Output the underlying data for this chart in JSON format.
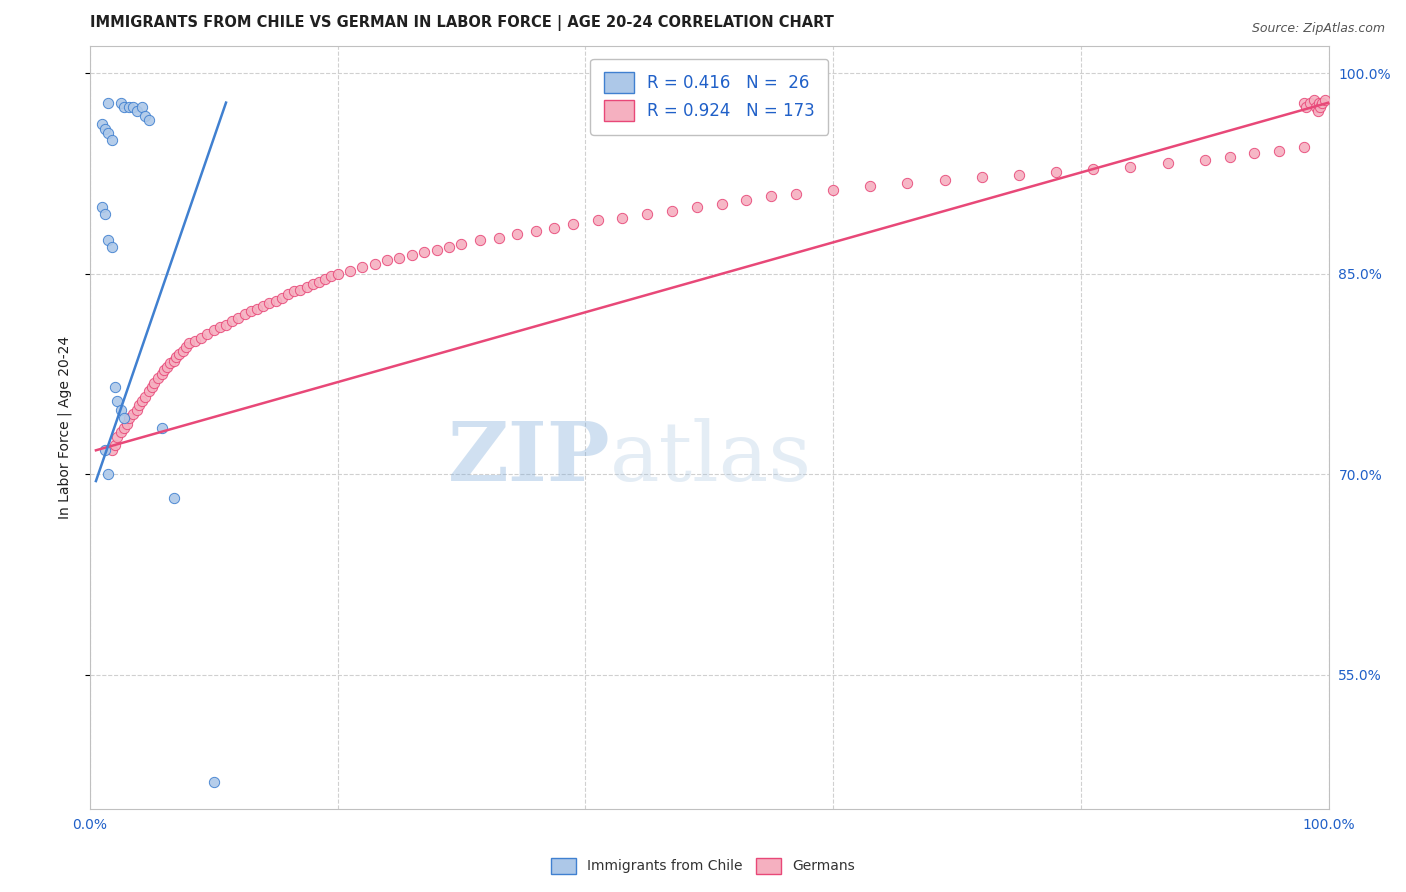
{
  "title": "IMMIGRANTS FROM CHILE VS GERMAN IN LABOR FORCE | AGE 20-24 CORRELATION CHART",
  "source": "Source: ZipAtlas.com",
  "ylabel": "In Labor Force | Age 20-24",
  "xlim": [
    0.0,
    1.0
  ],
  "ylim": [
    0.45,
    1.02
  ],
  "ytick_labels": [
    "55.0%",
    "70.0%",
    "85.0%",
    "100.0%"
  ],
  "ytick_values": [
    0.55,
    0.7,
    0.85,
    1.0
  ],
  "xtick_labels": [
    "0.0%",
    "100.0%"
  ],
  "xtick_values": [
    0.0,
    1.0
  ],
  "watermark_zip": "ZIP",
  "watermark_atlas": "atlas",
  "legend_r_chile": "0.416",
  "legend_n_chile": "26",
  "legend_r_german": "0.924",
  "legend_n_german": "173",
  "chile_fill_color": "#adc8e8",
  "german_fill_color": "#f5b0c0",
  "chile_edge_color": "#4080d0",
  "german_edge_color": "#e84878",
  "background_color": "#ffffff",
  "grid_color": "#d0d0d0",
  "title_color": "#202020",
  "axis_label_color": "#202020",
  "tick_label_color": "#2060c8",
  "source_color": "#555555",
  "chile_scatter_x": [
    0.015,
    0.025,
    0.028,
    0.032,
    0.035,
    0.038,
    0.042,
    0.045,
    0.048,
    0.01,
    0.012,
    0.015,
    0.018,
    0.01,
    0.012,
    0.015,
    0.018,
    0.02,
    0.022,
    0.025,
    0.028,
    0.058,
    0.012,
    0.015,
    0.068,
    0.1
  ],
  "chile_scatter_y": [
    0.978,
    0.978,
    0.975,
    0.975,
    0.975,
    0.972,
    0.975,
    0.968,
    0.965,
    0.962,
    0.958,
    0.955,
    0.95,
    0.9,
    0.895,
    0.875,
    0.87,
    0.765,
    0.755,
    0.748,
    0.742,
    0.735,
    0.718,
    0.7,
    0.682,
    0.47
  ],
  "german_scatter_x": [
    0.018,
    0.02,
    0.022,
    0.025,
    0.028,
    0.03,
    0.032,
    0.035,
    0.038,
    0.04,
    0.042,
    0.045,
    0.048,
    0.05,
    0.052,
    0.055,
    0.058,
    0.06,
    0.062,
    0.065,
    0.068,
    0.07,
    0.072,
    0.075,
    0.078,
    0.08,
    0.085,
    0.09,
    0.095,
    0.1,
    0.105,
    0.11,
    0.115,
    0.12,
    0.125,
    0.13,
    0.135,
    0.14,
    0.145,
    0.15,
    0.155,
    0.16,
    0.165,
    0.17,
    0.175,
    0.18,
    0.185,
    0.19,
    0.195,
    0.2,
    0.21,
    0.22,
    0.23,
    0.24,
    0.25,
    0.26,
    0.27,
    0.28,
    0.29,
    0.3,
    0.315,
    0.33,
    0.345,
    0.36,
    0.375,
    0.39,
    0.41,
    0.43,
    0.45,
    0.47,
    0.49,
    0.51,
    0.53,
    0.55,
    0.57,
    0.6,
    0.63,
    0.66,
    0.69,
    0.72,
    0.75,
    0.78,
    0.81,
    0.84,
    0.87,
    0.9,
    0.92,
    0.94,
    0.96,
    0.98,
    0.98,
    0.982,
    0.985,
    0.988,
    0.99,
    0.991,
    0.992,
    0.993,
    0.995,
    0.997
  ],
  "german_scatter_y": [
    0.718,
    0.722,
    0.728,
    0.732,
    0.735,
    0.738,
    0.742,
    0.745,
    0.748,
    0.752,
    0.755,
    0.758,
    0.762,
    0.765,
    0.768,
    0.772,
    0.775,
    0.778,
    0.78,
    0.783,
    0.785,
    0.788,
    0.79,
    0.792,
    0.795,
    0.798,
    0.8,
    0.802,
    0.805,
    0.808,
    0.81,
    0.812,
    0.815,
    0.817,
    0.82,
    0.822,
    0.824,
    0.826,
    0.828,
    0.83,
    0.832,
    0.835,
    0.837,
    0.838,
    0.84,
    0.842,
    0.844,
    0.846,
    0.848,
    0.85,
    0.852,
    0.855,
    0.857,
    0.86,
    0.862,
    0.864,
    0.866,
    0.868,
    0.87,
    0.872,
    0.875,
    0.877,
    0.88,
    0.882,
    0.884,
    0.887,
    0.89,
    0.892,
    0.895,
    0.897,
    0.9,
    0.902,
    0.905,
    0.908,
    0.91,
    0.913,
    0.916,
    0.918,
    0.92,
    0.922,
    0.924,
    0.926,
    0.928,
    0.93,
    0.933,
    0.935,
    0.937,
    0.94,
    0.942,
    0.945,
    0.978,
    0.975,
    0.978,
    0.98,
    0.975,
    0.972,
    0.978,
    0.975,
    0.978,
    0.98
  ],
  "title_fontsize": 10.5,
  "source_fontsize": 9,
  "ylabel_fontsize": 10,
  "legend_fontsize": 12,
  "tick_fontsize": 10,
  "marker_size": 55,
  "marker_lw": 0.7,
  "chile_line_x": [
    0.005,
    0.11
  ],
  "chile_line_y": [
    0.695,
    0.978
  ],
  "german_line_x": [
    0.005,
    1.0
  ],
  "german_line_y": [
    0.718,
    0.978
  ]
}
